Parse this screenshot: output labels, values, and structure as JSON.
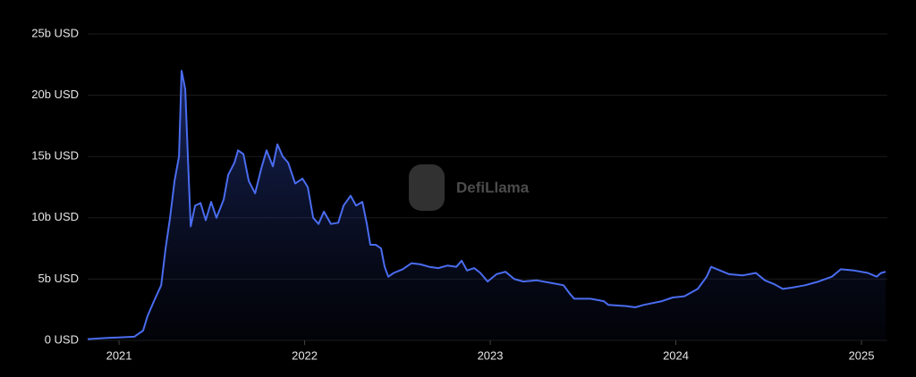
{
  "chart_data": {
    "type": "area",
    "watermark": "DefiLlama",
    "color": "#4a6cf0",
    "grid": true,
    "xlim": [
      2020.831,
      2025.13
    ],
    "xticks": [
      2021,
      2022,
      2023,
      2024,
      2025
    ],
    "ylim": [
      0,
      25
    ],
    "yticks": [
      {
        "value": 0,
        "label": "0 USD"
      },
      {
        "value": 5,
        "label": "5b USD"
      },
      {
        "value": 10,
        "label": "10b USD"
      },
      {
        "value": 15,
        "label": "15b USD"
      },
      {
        "value": 20,
        "label": "20b USD"
      },
      {
        "value": 25,
        "label": "25b USD"
      }
    ],
    "x": [
      2020.831,
      2020.937,
      2021.082,
      2021.13,
      2021.154,
      2021.188,
      2021.227,
      2021.251,
      2021.275,
      2021.299,
      2021.323,
      2021.337,
      2021.357,
      2021.371,
      2021.386,
      2021.41,
      2021.439,
      2021.467,
      2021.496,
      2021.525,
      2021.564,
      2021.588,
      2021.622,
      2021.641,
      2021.67,
      2021.699,
      2021.733,
      2021.766,
      2021.795,
      2021.829,
      2021.853,
      2021.882,
      2021.911,
      2021.949,
      2021.988,
      2022.017,
      2022.046,
      2022.075,
      2022.104,
      2022.142,
      2022.181,
      2022.21,
      2022.248,
      2022.277,
      2022.311,
      2022.335,
      2022.354,
      2022.383,
      2022.412,
      2022.431,
      2022.451,
      2022.48,
      2022.528,
      2022.576,
      2022.624,
      2022.672,
      2022.72,
      2022.769,
      2022.817,
      2022.846,
      2022.875,
      2022.913,
      2022.947,
      2022.986,
      2023.034,
      2023.082,
      2023.13,
      2023.178,
      2023.251,
      2023.323,
      2023.395,
      2023.429,
      2023.453,
      2023.54,
      2023.612,
      2023.636,
      2023.733,
      2023.781,
      2023.829,
      2023.925,
      2023.983,
      2024.046,
      2024.118,
      2024.166,
      2024.19,
      2024.239,
      2024.287,
      2024.359,
      2024.431,
      2024.48,
      2024.528,
      2024.576,
      2024.624,
      2024.696,
      2024.769,
      2024.841,
      2024.889,
      2024.961,
      2025.034,
      2025.082,
      2025.106,
      2025.13
    ],
    "values": [
      0.1,
      0.2,
      0.3,
      0.8,
      2.0,
      3.2,
      4.5,
      7.5,
      10,
      13,
      15,
      22,
      20.5,
      15,
      9.3,
      11,
      11.2,
      9.8,
      11.3,
      10,
      11.5,
      13.5,
      14.5,
      15.5,
      15.2,
      13,
      12,
      14,
      15.5,
      14.2,
      16,
      15,
      14.5,
      12.8,
      13.2,
      12.5,
      10,
      9.5,
      10.5,
      9.5,
      9.6,
      11,
      11.8,
      11,
      11.3,
      9.5,
      7.8,
      7.8,
      7.5,
      6,
      5.2,
      5.5,
      5.8,
      6.3,
      6.2,
      6,
      5.9,
      6.1,
      6,
      6.5,
      5.7,
      5.9,
      5.5,
      4.8,
      5.4,
      5.6,
      5,
      4.8,
      4.9,
      4.7,
      4.5,
      3.8,
      3.4,
      3.4,
      3.2,
      2.9,
      2.8,
      2.7,
      2.9,
      3.2,
      3.5,
      3.6,
      4.2,
      5.2,
      6,
      5.7,
      5.4,
      5.3,
      5.5,
      4.9,
      4.6,
      4.2,
      4.3,
      4.5,
      4.8,
      5.2,
      5.8,
      5.7,
      5.5,
      5.2,
      5.5,
      5.6
    ]
  }
}
